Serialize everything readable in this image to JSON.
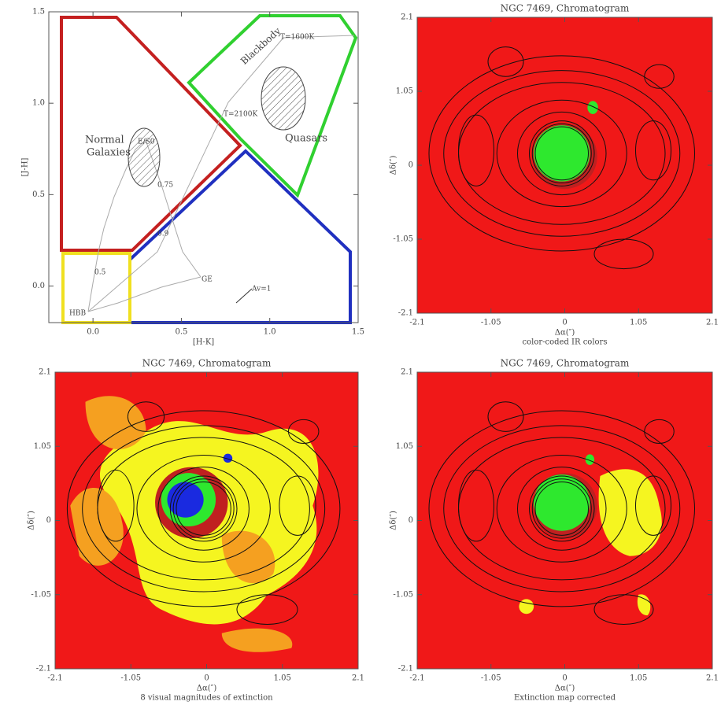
{
  "chart_data": [
    {
      "type": "scatter",
      "xlabel": "[H-K]",
      "ylabel": "[J-H]",
      "xlim": [
        -0.25,
        1.5
      ],
      "ylim": [
        -0.2,
        1.5
      ],
      "xticks": [
        {
          "value": 0,
          "label": "0.0"
        },
        0.5,
        {
          "value": 1,
          "label": "1.0"
        },
        1.5
      ],
      "yticks": [
        {
          "value": 0,
          "label": "0.0"
        },
        0.5,
        {
          "value": 1,
          "label": "1.0"
        },
        1.5
      ],
      "annotations": [
        "Normal",
        "Galaxies",
        "Quasars",
        "Blackbody",
        "T=1600K",
        "T=2100K",
        "Av=1",
        "HBB",
        "GE",
        "E/S0",
        "0.75",
        "0.9",
        "0.5"
      ]
    },
    {
      "type": "image",
      "title": "NGC 7469, Chromatogram",
      "xlabel": "Δα(″)",
      "ylabel": "Δδ(″)",
      "caption": "color-coded IR colors",
      "xlim": [
        -2.1,
        2.1
      ],
      "ylim": [
        -2.1,
        2.1
      ],
      "xticks": [
        -2.1,
        -1.05,
        0,
        1.05,
        2.1
      ],
      "yticks": [
        -2.1,
        -1.05,
        0,
        1.05,
        2.1
      ]
    },
    {
      "type": "image",
      "title": "NGC 7469, Chromatogram",
      "xlabel": "Δα(″)",
      "ylabel": "Δδ(″)",
      "caption": "8 visual magnitudes of extinction",
      "xlim": [
        -2.1,
        2.1
      ],
      "ylim": [
        -2.1,
        2.1
      ],
      "xticks": [
        -2.1,
        -1.05,
        0,
        1.05,
        2.1
      ],
      "yticks": [
        -2.1,
        -1.05,
        0,
        1.05,
        2.1
      ]
    },
    {
      "type": "image",
      "title": "NGC 7469, Chromatogram",
      "xlabel": "Δα(″)",
      "ylabel": "Δδ(″)",
      "caption": "Extinction map corrected",
      "xlim": [
        -2.1,
        2.1
      ],
      "ylim": [
        -2.1,
        2.1
      ],
      "xticks": [
        -2.1,
        -1.05,
        0,
        1.05,
        2.1
      ],
      "yticks": [
        -2.1,
        -1.05,
        0,
        1.05,
        2.1
      ]
    }
  ]
}
